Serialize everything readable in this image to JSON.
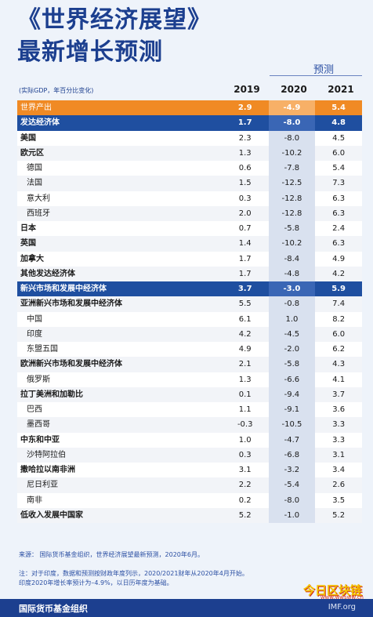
{
  "title_line1": "《世界经济展望》",
  "title_line2": "最新增长预测",
  "forecast_label": "预测",
  "subtitle": "(实际GDP，年百分比变化)",
  "headers": [
    "2019",
    "2020",
    "2021"
  ],
  "rows": [
    {
      "name": "世界产出",
      "v": [
        "2.9",
        "-4.9",
        "5.4"
      ],
      "style": "world"
    },
    {
      "name": "发达经济体",
      "v": [
        "1.7",
        "-8.0",
        "4.8"
      ],
      "style": "group"
    },
    {
      "name": "美国",
      "v": [
        "2.3",
        "-8.0",
        "4.5"
      ],
      "style": "bold"
    },
    {
      "name": "欧元区",
      "v": [
        "1.3",
        "-10.2",
        "6.0"
      ],
      "style": "bold"
    },
    {
      "name": "德国",
      "v": [
        "0.6",
        "-7.8",
        "5.4"
      ],
      "style": "indent"
    },
    {
      "name": "法国",
      "v": [
        "1.5",
        "-12.5",
        "7.3"
      ],
      "style": "indent"
    },
    {
      "name": "意大利",
      "v": [
        "0.3",
        "-12.8",
        "6.3"
      ],
      "style": "indent"
    },
    {
      "name": "西班牙",
      "v": [
        "2.0",
        "-12.8",
        "6.3"
      ],
      "style": "indent"
    },
    {
      "name": "日本",
      "v": [
        "0.7",
        "-5.8",
        "2.4"
      ],
      "style": "bold"
    },
    {
      "name": "英国",
      "v": [
        "1.4",
        "-10.2",
        "6.3"
      ],
      "style": "bold"
    },
    {
      "name": "加拿大",
      "v": [
        "1.7",
        "-8.4",
        "4.9"
      ],
      "style": "bold"
    },
    {
      "name": "其他发达经济体",
      "v": [
        "1.7",
        "-4.8",
        "4.2"
      ],
      "style": "bold"
    },
    {
      "name": "新兴市场和发展中经济体",
      "v": [
        "3.7",
        "-3.0",
        "5.9"
      ],
      "style": "group"
    },
    {
      "name": "亚洲新兴市场和发展中经济体",
      "v": [
        "5.5",
        "-0.8",
        "7.4"
      ],
      "style": "bold"
    },
    {
      "name": "中国",
      "v": [
        "6.1",
        "1.0",
        "8.2"
      ],
      "style": "indent"
    },
    {
      "name": "印度",
      "v": [
        "4.2",
        "-4.5",
        "6.0"
      ],
      "style": "indent"
    },
    {
      "name": "东盟五国",
      "v": [
        "4.9",
        "-2.0",
        "6.2"
      ],
      "style": "indent"
    },
    {
      "name": "欧洲新兴市场和发展中经济体",
      "v": [
        "2.1",
        "-5.8",
        "4.3"
      ],
      "style": "bold"
    },
    {
      "name": "俄罗斯",
      "v": [
        "1.3",
        "-6.6",
        "4.1"
      ],
      "style": "indent"
    },
    {
      "name": "拉丁美洲和加勒比",
      "v": [
        "0.1",
        "-9.4",
        "3.7"
      ],
      "style": "bold"
    },
    {
      "name": "巴西",
      "v": [
        "1.1",
        "-9.1",
        "3.6"
      ],
      "style": "indent"
    },
    {
      "name": "墨西哥",
      "v": [
        "-0.3",
        "-10.5",
        "3.3"
      ],
      "style": "indent"
    },
    {
      "name": "中东和中亚",
      "v": [
        "1.0",
        "-4.7",
        "3.3"
      ],
      "style": "bold"
    },
    {
      "name": "沙特阿拉伯",
      "v": [
        "0.3",
        "-6.8",
        "3.1"
      ],
      "style": "indent"
    },
    {
      "name": "撒哈拉以南非洲",
      "v": [
        "3.1",
        "-3.2",
        "3.4"
      ],
      "style": "bold"
    },
    {
      "name": "尼日利亚",
      "v": [
        "2.2",
        "-5.4",
        "2.6"
      ],
      "style": "indent"
    },
    {
      "name": "南非",
      "v": [
        "0.2",
        "-8.0",
        "3.5"
      ],
      "style": "indent"
    },
    {
      "name": "低收入发展中国家",
      "v": [
        "5.2",
        "-1.0",
        "5.2"
      ],
      "style": "bold"
    }
  ],
  "source": "来源：  国际货币基金组织，世界经济展望最新预测，2020年6月。",
  "note_line1": "注：对于印度，数据和预测按财政年度列示，2020/2021财年从2020年4月开始。",
  "note_line2": "印度2020年增长率预计为–4.9%，以日历年度为基础。",
  "footer_org": "国际货币基金组织",
  "footer_imf": "IMF.org",
  "watermark": "今日区块链",
  "watermark_url": "www.wwsww.cn"
}
